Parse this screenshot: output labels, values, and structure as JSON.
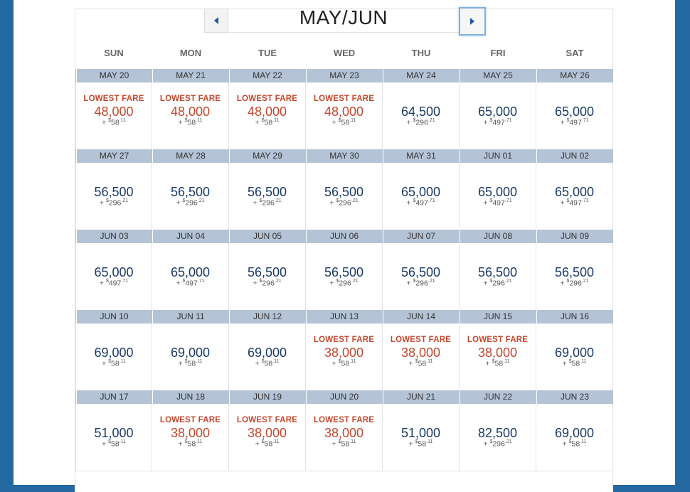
{
  "calendar": {
    "month_title": "MAY/JUN",
    "prev_icon": "triangle-left-icon",
    "next_icon": "triangle-right-icon",
    "days_of_week": [
      "SUN",
      "MON",
      "TUE",
      "WED",
      "THU",
      "FRI",
      "SAT"
    ],
    "lowest_label": "LOWEST FARE",
    "weeks": [
      [
        {
          "date": "MAY 20",
          "miles": "48,000",
          "tax_dollar": "$",
          "tax_whole": "58",
          "tax_cents": "11",
          "lowest": true
        },
        {
          "date": "MAY 21",
          "miles": "48,000",
          "tax_dollar": "$",
          "tax_whole": "58",
          "tax_cents": "11",
          "lowest": true
        },
        {
          "date": "MAY 22",
          "miles": "48,000",
          "tax_dollar": "$",
          "tax_whole": "58",
          "tax_cents": "11",
          "lowest": true
        },
        {
          "date": "MAY 23",
          "miles": "48,000",
          "tax_dollar": "$",
          "tax_whole": "58",
          "tax_cents": "11",
          "lowest": true
        },
        {
          "date": "MAY 24",
          "miles": "64,500",
          "tax_dollar": "$",
          "tax_whole": "296",
          "tax_cents": "21",
          "lowest": false
        },
        {
          "date": "MAY 25",
          "miles": "65,000",
          "tax_dollar": "$",
          "tax_whole": "497",
          "tax_cents": "71",
          "lowest": false
        },
        {
          "date": "MAY 26",
          "miles": "65,000",
          "tax_dollar": "$",
          "tax_whole": "497",
          "tax_cents": "71",
          "lowest": false
        }
      ],
      [
        {
          "date": "MAY 27",
          "miles": "56,500",
          "tax_dollar": "$",
          "tax_whole": "296",
          "tax_cents": "21",
          "lowest": false
        },
        {
          "date": "MAY 28",
          "miles": "56,500",
          "tax_dollar": "$",
          "tax_whole": "296",
          "tax_cents": "21",
          "lowest": false
        },
        {
          "date": "MAY 29",
          "miles": "56,500",
          "tax_dollar": "$",
          "tax_whole": "296",
          "tax_cents": "21",
          "lowest": false
        },
        {
          "date": "MAY 30",
          "miles": "56,500",
          "tax_dollar": "$",
          "tax_whole": "296",
          "tax_cents": "21",
          "lowest": false
        },
        {
          "date": "MAY 31",
          "miles": "65,000",
          "tax_dollar": "$",
          "tax_whole": "497",
          "tax_cents": "71",
          "lowest": false
        },
        {
          "date": "JUN 01",
          "miles": "65,000",
          "tax_dollar": "$",
          "tax_whole": "497",
          "tax_cents": "71",
          "lowest": false
        },
        {
          "date": "JUN 02",
          "miles": "65,000",
          "tax_dollar": "$",
          "tax_whole": "497",
          "tax_cents": "71",
          "lowest": false
        }
      ],
      [
        {
          "date": "JUN 03",
          "miles": "65,000",
          "tax_dollar": "$",
          "tax_whole": "497",
          "tax_cents": "71",
          "lowest": false
        },
        {
          "date": "JUN 04",
          "miles": "65,000",
          "tax_dollar": "$",
          "tax_whole": "497",
          "tax_cents": "71",
          "lowest": false
        },
        {
          "date": "JUN 05",
          "miles": "56,500",
          "tax_dollar": "$",
          "tax_whole": "296",
          "tax_cents": "21",
          "lowest": false
        },
        {
          "date": "JUN 06",
          "miles": "56,500",
          "tax_dollar": "$",
          "tax_whole": "296",
          "tax_cents": "21",
          "lowest": false
        },
        {
          "date": "JUN 07",
          "miles": "56,500",
          "tax_dollar": "$",
          "tax_whole": "296",
          "tax_cents": "21",
          "lowest": false
        },
        {
          "date": "JUN 08",
          "miles": "56,500",
          "tax_dollar": "$",
          "tax_whole": "296",
          "tax_cents": "21",
          "lowest": false
        },
        {
          "date": "JUN 09",
          "miles": "56,500",
          "tax_dollar": "$",
          "tax_whole": "296",
          "tax_cents": "21",
          "lowest": false
        }
      ],
      [
        {
          "date": "JUN 10",
          "miles": "69,000",
          "tax_dollar": "$",
          "tax_whole": "58",
          "tax_cents": "11",
          "lowest": false
        },
        {
          "date": "JUN 11",
          "miles": "69,000",
          "tax_dollar": "$",
          "tax_whole": "58",
          "tax_cents": "11",
          "lowest": false
        },
        {
          "date": "JUN 12",
          "miles": "69,000",
          "tax_dollar": "$",
          "tax_whole": "58",
          "tax_cents": "11",
          "lowest": false
        },
        {
          "date": "JUN 13",
          "miles": "38,000",
          "tax_dollar": "$",
          "tax_whole": "58",
          "tax_cents": "11",
          "lowest": true
        },
        {
          "date": "JUN 14",
          "miles": "38,000",
          "tax_dollar": "$",
          "tax_whole": "58",
          "tax_cents": "11",
          "lowest": true
        },
        {
          "date": "JUN 15",
          "miles": "38,000",
          "tax_dollar": "$",
          "tax_whole": "58",
          "tax_cents": "11",
          "lowest": true
        },
        {
          "date": "JUN 16",
          "miles": "69,000",
          "tax_dollar": "$",
          "tax_whole": "58",
          "tax_cents": "11",
          "lowest": false
        }
      ],
      [
        {
          "date": "JUN 17",
          "miles": "51,000",
          "tax_dollar": "$",
          "tax_whole": "58",
          "tax_cents": "11",
          "lowest": false
        },
        {
          "date": "JUN 18",
          "miles": "38,000",
          "tax_dollar": "$",
          "tax_whole": "58",
          "tax_cents": "11",
          "lowest": true
        },
        {
          "date": "JUN 19",
          "miles": "38,000",
          "tax_dollar": "$",
          "tax_whole": "58",
          "tax_cents": "11",
          "lowest": true
        },
        {
          "date": "JUN 20",
          "miles": "38,000",
          "tax_dollar": "$",
          "tax_whole": "58",
          "tax_cents": "11",
          "lowest": true
        },
        {
          "date": "JUN 21",
          "miles": "51,000",
          "tax_dollar": "$",
          "tax_whole": "58",
          "tax_cents": "11",
          "lowest": false
        },
        {
          "date": "JUN 22",
          "miles": "82,500",
          "tax_dollar": "$",
          "tax_whole": "296",
          "tax_cents": "21",
          "lowest": false
        },
        {
          "date": "JUN 23",
          "miles": "69,000",
          "tax_dollar": "$",
          "tax_whole": "58",
          "tax_cents": "11",
          "lowest": false
        }
      ]
    ]
  },
  "colors": {
    "page_background": "#2468a2",
    "week_header": "#b4c3d6",
    "lowest_fare": "#c4472d",
    "regular_fare": "#1b3b66"
  }
}
